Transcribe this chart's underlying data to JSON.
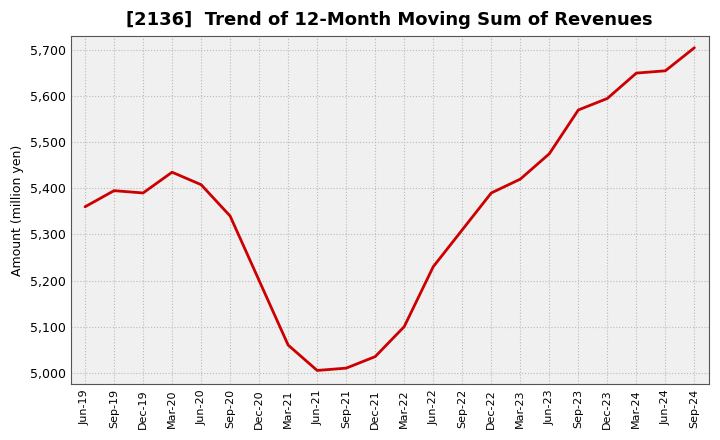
{
  "title": "[2136]  Trend of 12-Month Moving Sum of Revenues",
  "ylabel": "Amount (million yen)",
  "line_color": "#cc0000",
  "background_color": "#ffffff",
  "plot_bg_color": "#f0f0f0",
  "grid_color": "#bbbbbb",
  "ylim": [
    4975,
    5730
  ],
  "yticks": [
    5000,
    5100,
    5200,
    5300,
    5400,
    5500,
    5600,
    5700
  ],
  "x_labels": [
    "Jun-19",
    "Sep-19",
    "Dec-19",
    "Mar-20",
    "Jun-20",
    "Sep-20",
    "Dec-20",
    "Mar-21",
    "Jun-21",
    "Sep-21",
    "Dec-21",
    "Mar-22",
    "Jun-22",
    "Sep-22",
    "Dec-22",
    "Mar-23",
    "Jun-23",
    "Sep-23",
    "Dec-23",
    "Mar-24",
    "Jun-24",
    "Sep-24"
  ],
  "values": [
    5360,
    5395,
    5390,
    5435,
    5408,
    5340,
    5200,
    5060,
    5005,
    5010,
    5035,
    5100,
    5230,
    5310,
    5390,
    5420,
    5475,
    5570,
    5595,
    5650,
    5655,
    5705
  ],
  "title_fontsize": 13,
  "ylabel_fontsize": 9,
  "xtick_fontsize": 8,
  "ytick_fontsize": 9,
  "linewidth": 2.0
}
